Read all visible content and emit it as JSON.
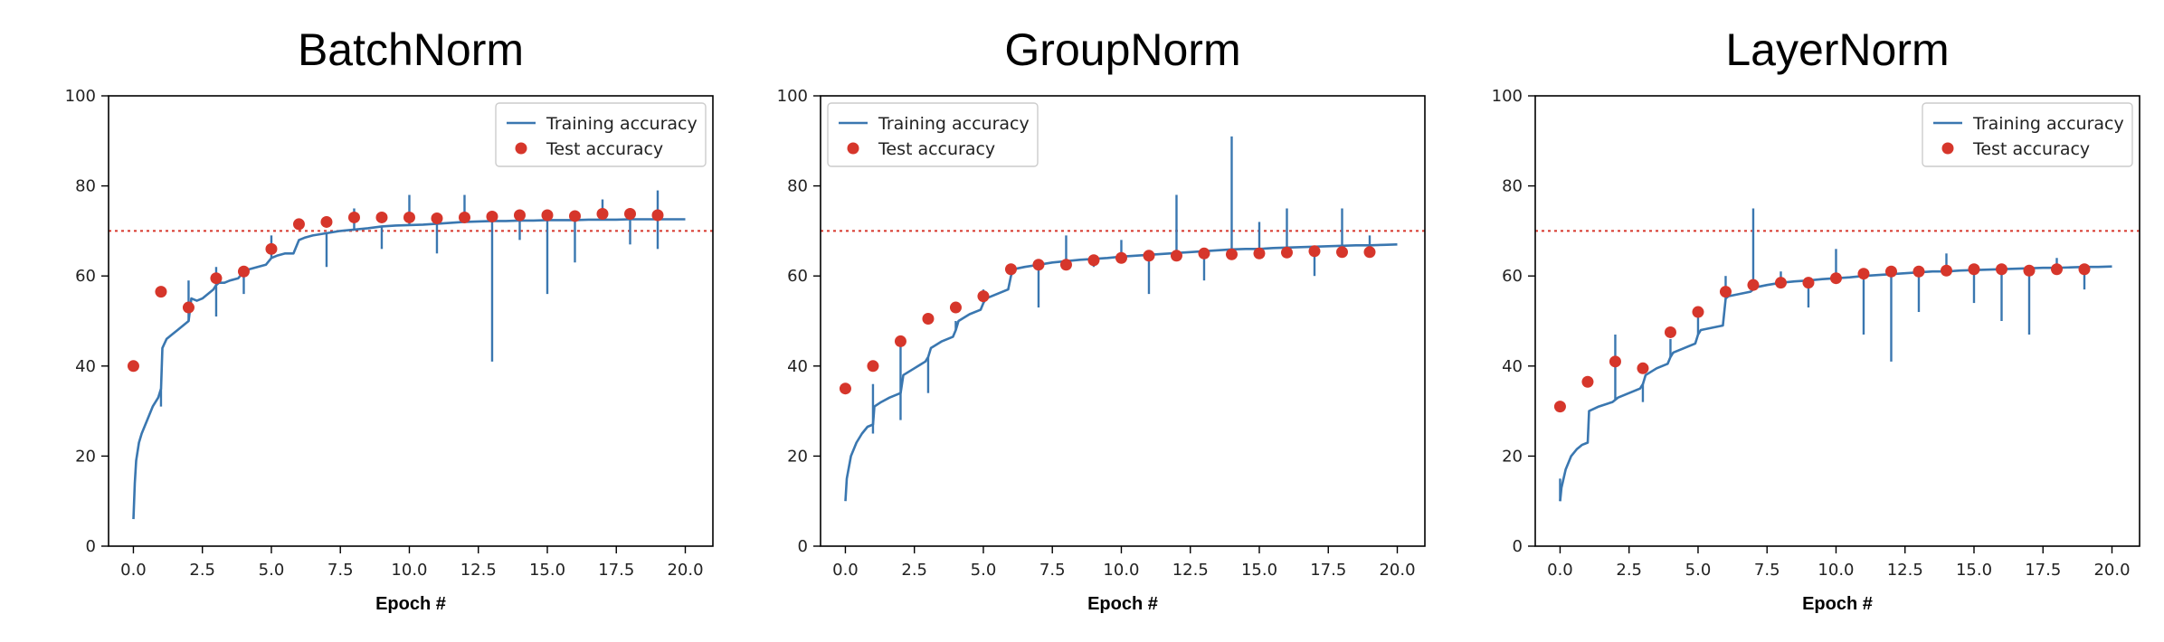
{
  "colors": {
    "training": "#3a77b0",
    "test": "#d6362b",
    "threshold": "#d6362b",
    "axis": "#000000"
  },
  "legend": {
    "training_label": "Training accuracy",
    "test_label": "Test accuracy"
  },
  "chart_data": [
    {
      "type": "line",
      "title": "BatchNorm",
      "xlabel": "Epoch #",
      "ylabel": "",
      "xlim": [
        -0.9,
        21.0
      ],
      "ylim": [
        0,
        100
      ],
      "xticks": [
        "0.0",
        "2.5",
        "5.0",
        "7.5",
        "10.0",
        "12.5",
        "15.0",
        "17.5",
        "20.0"
      ],
      "yticks": [
        "0",
        "20",
        "40",
        "60",
        "80",
        "100"
      ],
      "threshold": 70,
      "legend_position": "top-right",
      "series": [
        {
          "name": "Training accuracy",
          "kind": "line",
          "x": [
            0.0,
            0.05,
            0.1,
            0.2,
            0.3,
            0.5,
            0.7,
            0.9,
            1.0,
            1.05,
            1.2,
            1.4,
            1.6,
            1.8,
            2.0,
            2.1,
            2.3,
            2.5,
            2.7,
            2.9,
            3.0,
            3.1,
            3.3,
            3.5,
            3.8,
            4.0,
            4.2,
            4.5,
            4.8,
            5.0,
            5.2,
            5.5,
            5.8,
            6.0,
            6.2,
            6.5,
            7.0,
            7.5,
            8.0,
            8.5,
            9.0,
            9.5,
            10.0,
            10.5,
            11.0,
            11.5,
            12.0,
            12.5,
            13.0,
            13.5,
            14.0,
            14.5,
            15.0,
            15.5,
            16.0,
            16.5,
            17.0,
            17.5,
            18.0,
            18.5,
            19.0,
            19.5,
            20.0
          ],
          "y": [
            6,
            14,
            19,
            23,
            25,
            28,
            31,
            33,
            35,
            44,
            46,
            47,
            48,
            49,
            50,
            55,
            54.5,
            55,
            56,
            57,
            58,
            58.5,
            58.5,
            59,
            59.5,
            61,
            61.5,
            62,
            62.5,
            64,
            64.5,
            65,
            65,
            68,
            68.5,
            69,
            69.5,
            70,
            70.3,
            70.6,
            71,
            71.2,
            71.3,
            71.4,
            71.6,
            71.8,
            72,
            72.1,
            72.2,
            72.2,
            72.3,
            72.3,
            72.4,
            72.4,
            72.4,
            72.5,
            72.5,
            72.5,
            72.6,
            72.6,
            72.6,
            72.6,
            72.6
          ],
          "spikes": [
            {
              "x": 1.0,
              "y": 31
            },
            {
              "x": 2.0,
              "y": 59
            },
            {
              "x": 3.0,
              "y": 51
            },
            {
              "x": 3.0,
              "y": 62
            },
            {
              "x": 4.0,
              "y": 56
            },
            {
              "x": 5.0,
              "y": 69
            },
            {
              "x": 7.0,
              "y": 62
            },
            {
              "x": 8.0,
              "y": 75
            },
            {
              "x": 9.0,
              "y": 66
            },
            {
              "x": 10.0,
              "y": 78
            },
            {
              "x": 11.0,
              "y": 65
            },
            {
              "x": 12.0,
              "y": 78
            },
            {
              "x": 13.0,
              "y": 41
            },
            {
              "x": 14.0,
              "y": 68
            },
            {
              "x": 15.0,
              "y": 56
            },
            {
              "x": 16.0,
              "y": 63
            },
            {
              "x": 17.0,
              "y": 77
            },
            {
              "x": 18.0,
              "y": 67
            },
            {
              "x": 19.0,
              "y": 79
            },
            {
              "x": 19.0,
              "y": 66
            }
          ]
        },
        {
          "name": "Test accuracy",
          "kind": "scatter",
          "x": [
            0,
            1,
            2,
            3,
            4,
            5,
            6,
            7,
            8,
            9,
            10,
            11,
            12,
            13,
            14,
            15,
            16,
            17,
            18,
            19
          ],
          "y": [
            40,
            56.5,
            53,
            59.5,
            61,
            66,
            71.5,
            72,
            73,
            73,
            73,
            72.8,
            73,
            73.2,
            73.5,
            73.5,
            73.3,
            73.8,
            73.8,
            73.5
          ]
        }
      ]
    },
    {
      "type": "line",
      "title": "GroupNorm",
      "xlabel": "Epoch #",
      "ylabel": "",
      "xlim": [
        -0.9,
        21.0
      ],
      "ylim": [
        0,
        100
      ],
      "xticks": [
        "0.0",
        "2.5",
        "5.0",
        "7.5",
        "10.0",
        "12.5",
        "15.0",
        "17.5",
        "20.0"
      ],
      "yticks": [
        "0",
        "20",
        "40",
        "60",
        "80",
        "100"
      ],
      "threshold": 70,
      "legend_position": "top-left",
      "series": [
        {
          "name": "Training accuracy",
          "kind": "line",
          "x": [
            0.0,
            0.05,
            0.2,
            0.4,
            0.6,
            0.8,
            1.0,
            1.05,
            1.3,
            1.6,
            2.0,
            2.1,
            2.5,
            2.9,
            3.0,
            3.1,
            3.5,
            3.9,
            4.0,
            4.1,
            4.5,
            4.9,
            5.0,
            5.1,
            5.5,
            5.9,
            6.0,
            6.1,
            6.5,
            7.0,
            7.5,
            8.0,
            8.5,
            9.0,
            9.5,
            10.0,
            10.5,
            11.0,
            11.5,
            12.0,
            12.5,
            13.0,
            13.5,
            14.0,
            14.5,
            15.0,
            15.5,
            16.0,
            16.5,
            17.0,
            17.5,
            18.0,
            18.5,
            19.0,
            19.5,
            20.0
          ],
          "y": [
            10,
            15,
            20,
            23,
            25,
            26.5,
            27,
            31,
            32,
            33,
            34,
            38,
            39.5,
            41,
            42,
            44,
            45.5,
            46.5,
            48,
            50,
            51.5,
            52.5,
            54,
            55,
            56,
            57,
            60,
            61.5,
            62,
            62.5,
            63,
            63.3,
            63.6,
            63.8,
            64,
            64.3,
            64.5,
            64.7,
            64.9,
            65.1,
            65.3,
            65.5,
            65.7,
            65.9,
            66,
            66,
            66.2,
            66.3,
            66.4,
            66.5,
            66.6,
            66.7,
            66.8,
            66.8,
            66.9,
            67
          ]
        },
        {
          "name": "Test accuracy",
          "kind": "scatter",
          "x": [
            0,
            1,
            2,
            3,
            4,
            5,
            6,
            7,
            8,
            9,
            10,
            11,
            12,
            13,
            14,
            15,
            16,
            17,
            18,
            19
          ],
          "y": [
            35,
            40,
            45.5,
            50.5,
            53,
            55.5,
            61.5,
            62.5,
            62.5,
            63.5,
            64,
            64.5,
            64.5,
            65,
            64.8,
            65,
            65.2,
            65.5,
            65.3,
            65.3
          ]
        }
      ],
      "spikes": [
        {
          "x": 1.0,
          "y": 25
        },
        {
          "x": 1.0,
          "y": 36
        },
        {
          "x": 2.0,
          "y": 28
        },
        {
          "x": 2.0,
          "y": 45
        },
        {
          "x": 3.0,
          "y": 34
        },
        {
          "x": 4.0,
          "y": 50
        },
        {
          "x": 5.0,
          "y": 57
        },
        {
          "x": 7.0,
          "y": 53
        },
        {
          "x": 8.0,
          "y": 69
        },
        {
          "x": 9.0,
          "y": 62
        },
        {
          "x": 10.0,
          "y": 68
        },
        {
          "x": 11.0,
          "y": 56
        },
        {
          "x": 12.0,
          "y": 78
        },
        {
          "x": 13.0,
          "y": 59
        },
        {
          "x": 14.0,
          "y": 91
        },
        {
          "x": 15.0,
          "y": 72
        },
        {
          "x": 16.0,
          "y": 75
        },
        {
          "x": 17.0,
          "y": 60
        },
        {
          "x": 18.0,
          "y": 75
        },
        {
          "x": 19.0,
          "y": 69
        }
      ]
    },
    {
      "type": "line",
      "title": "LayerNorm",
      "xlabel": "Epoch #",
      "ylabel": "",
      "xlim": [
        -0.9,
        21.0
      ],
      "ylim": [
        0,
        100
      ],
      "xticks": [
        "0.0",
        "2.5",
        "5.0",
        "7.5",
        "10.0",
        "12.5",
        "15.0",
        "17.5",
        "20.0"
      ],
      "yticks": [
        "0",
        "20",
        "40",
        "60",
        "80",
        "100"
      ],
      "threshold": 70,
      "legend_position": "top-right",
      "series": [
        {
          "name": "Training accuracy",
          "kind": "line",
          "x": [
            0.0,
            0.05,
            0.2,
            0.4,
            0.6,
            0.8,
            1.0,
            1.05,
            1.4,
            1.9,
            2.0,
            2.1,
            2.5,
            2.9,
            3.0,
            3.1,
            3.5,
            3.9,
            4.0,
            4.1,
            4.5,
            4.9,
            5.0,
            5.1,
            5.5,
            5.9,
            6.0,
            6.1,
            6.5,
            6.9,
            7.0,
            7.1,
            7.5,
            8.0,
            8.5,
            9.0,
            9.5,
            10.0,
            10.5,
            11.0,
            11.5,
            12.0,
            12.5,
            13.0,
            13.5,
            14.0,
            14.5,
            15.0,
            15.5,
            16.0,
            16.5,
            17.0,
            17.5,
            18.0,
            18.5,
            19.0,
            19.5,
            20.0
          ],
          "y": [
            10,
            13,
            17,
            20,
            21.5,
            22.5,
            23,
            30,
            31,
            32,
            32.5,
            33,
            34,
            35,
            36,
            38,
            39.5,
            40.5,
            42,
            43,
            44,
            45,
            47,
            48,
            48.5,
            49,
            55,
            55.5,
            56,
            56.5,
            57,
            57.5,
            58,
            58.5,
            58.8,
            59,
            59.3,
            59.5,
            59.7,
            60,
            60.2,
            60.4,
            60.6,
            60.8,
            61,
            61,
            61.2,
            61.3,
            61.4,
            61.5,
            61.6,
            61.7,
            61.8,
            61.8,
            61.9,
            62,
            62,
            62.1
          ]
        },
        {
          "name": "Test accuracy",
          "kind": "scatter",
          "x": [
            0,
            1,
            2,
            3,
            4,
            5,
            6,
            7,
            8,
            9,
            10,
            11,
            12,
            13,
            14,
            15,
            16,
            17,
            18,
            19
          ],
          "y": [
            31,
            36.5,
            41,
            39.5,
            47.5,
            52,
            56.5,
            58,
            58.5,
            58.5,
            59.5,
            60.5,
            61,
            61,
            61.2,
            61.5,
            61.5,
            61.2,
            61.5,
            61.5
          ]
        }
      ],
      "spikes": [
        {
          "x": 0.0,
          "y": 15
        },
        {
          "x": 2.0,
          "y": 47
        },
        {
          "x": 3.0,
          "y": 32
        },
        {
          "x": 4.0,
          "y": 46
        },
        {
          "x": 5.0,
          "y": 51
        },
        {
          "x": 6.0,
          "y": 60
        },
        {
          "x": 7.0,
          "y": 75
        },
        {
          "x": 8.0,
          "y": 61
        },
        {
          "x": 9.0,
          "y": 53
        },
        {
          "x": 10.0,
          "y": 66
        },
        {
          "x": 11.0,
          "y": 47
        },
        {
          "x": 12.0,
          "y": 41
        },
        {
          "x": 13.0,
          "y": 52
        },
        {
          "x": 14.0,
          "y": 65
        },
        {
          "x": 15.0,
          "y": 54
        },
        {
          "x": 16.0,
          "y": 50
        },
        {
          "x": 17.0,
          "y": 47
        },
        {
          "x": 18.0,
          "y": 64
        },
        {
          "x": 19.0,
          "y": 57
        }
      ]
    }
  ]
}
